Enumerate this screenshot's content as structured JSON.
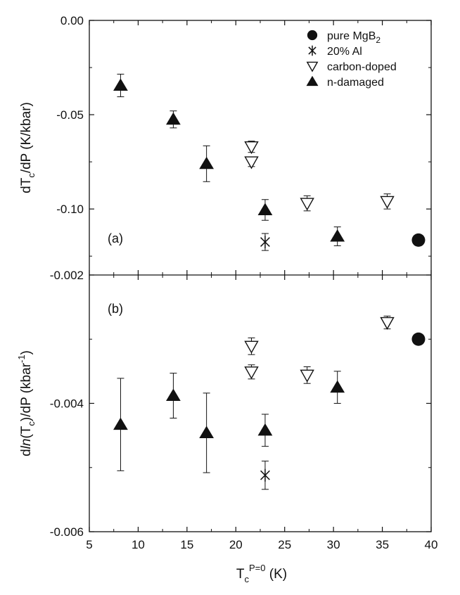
{
  "chart_data": [
    {
      "panel": "(a)",
      "type": "scatter",
      "ylabel": "dT_c/dP (K/kbar)",
      "ylabel_parts": {
        "main": "dT",
        "sub": "c",
        "rest": "/dP (K/kbar)"
      },
      "xlim": [
        5,
        40
      ],
      "ylim": [
        -0.135,
        0.0
      ],
      "yticks": [
        0.0,
        -0.05,
        -0.1
      ],
      "yticklabels": [
        "0.00",
        "-0.05",
        "-0.10"
      ],
      "legend": {
        "placement": "top-right",
        "entries": [
          {
            "key": "pure",
            "label": "pure MgB",
            "sub": "2",
            "marker": "filled-circle"
          },
          {
            "key": "al",
            "label": "20% Al",
            "sub": "",
            "marker": "asterisk"
          },
          {
            "key": "carbon",
            "label": "carbon-doped",
            "sub": "",
            "marker": "open-triangle-down"
          },
          {
            "key": "n",
            "label": "n-damaged",
            "sub": "",
            "marker": "filled-triangle-up"
          }
        ]
      },
      "series": [
        {
          "key": "pure",
          "points": [
            {
              "x": 38.7,
              "y": -0.1165
            }
          ]
        },
        {
          "key": "al",
          "points": [
            {
              "x": 23.0,
              "y": -0.1175,
              "err": 0.0045
            }
          ]
        },
        {
          "key": "carbon",
          "points": [
            {
              "x": 21.6,
              "y": -0.067,
              "err": 0.003
            },
            {
              "x": 21.6,
              "y": -0.075,
              "err": 0.0025
            },
            {
              "x": 27.3,
              "y": -0.097,
              "err": 0.004
            },
            {
              "x": 35.5,
              "y": -0.096,
              "err": 0.004
            }
          ]
        },
        {
          "key": "n",
          "points": [
            {
              "x": 8.2,
              "y": -0.0345,
              "err": 0.006
            },
            {
              "x": 13.6,
              "y": -0.0525,
              "err": 0.0045
            },
            {
              "x": 17.0,
              "y": -0.076,
              "err": 0.0095
            },
            {
              "x": 23.0,
              "y": -0.1005,
              "err": 0.0055
            },
            {
              "x": 30.4,
              "y": -0.1145,
              "err": 0.005
            }
          ]
        }
      ]
    },
    {
      "panel": "(b)",
      "type": "scatter",
      "xlabel": "T_c^{P=0} (K)",
      "xlabel_parts": {
        "main": "T",
        "sub": "c",
        "sup": "P=0",
        "rest": " (K)"
      },
      "ylabel": "dln(T_c)/dP (kbar^-1)",
      "ylabel_parts": {
        "d": "d",
        "ln": "ln",
        "open": "(T",
        "sub": "c",
        "close": ")/dP (kbar",
        "sup": "-1",
        "end": ")"
      },
      "xlim": [
        5,
        40
      ],
      "ylim": [
        -0.006,
        -0.002
      ],
      "xticks": [
        5,
        10,
        15,
        20,
        25,
        30,
        35,
        40
      ],
      "xticklabels": [
        "5",
        "10",
        "15",
        "20",
        "25",
        "30",
        "35",
        "40"
      ],
      "yticks": [
        -0.002,
        -0.004,
        -0.006
      ],
      "yticklabels": [
        "-0.002",
        "-0.004",
        "-0.006"
      ],
      "series": [
        {
          "key": "pure",
          "points": [
            {
              "x": 38.7,
              "y": -0.003
            }
          ]
        },
        {
          "key": "al",
          "points": [
            {
              "x": 23.0,
              "y": -0.00512,
              "err": 0.00022
            }
          ]
        },
        {
          "key": "carbon",
          "points": [
            {
              "x": 21.6,
              "y": -0.00311,
              "err": 0.00013
            },
            {
              "x": 21.6,
              "y": -0.00351,
              "err": 0.00011
            },
            {
              "x": 27.3,
              "y": -0.00356,
              "err": 0.00013
            },
            {
              "x": 35.5,
              "y": -0.00274,
              "err": 0.0001
            }
          ]
        },
        {
          "key": "n",
          "points": [
            {
              "x": 8.2,
              "y": -0.00433,
              "err": 0.00072
            },
            {
              "x": 13.6,
              "y": -0.00388,
              "err": 0.00035
            },
            {
              "x": 17.0,
              "y": -0.00446,
              "err": 0.00062
            },
            {
              "x": 23.0,
              "y": -0.00442,
              "err": 0.00025
            },
            {
              "x": 30.4,
              "y": -0.00375,
              "err": 0.00025
            }
          ]
        }
      ]
    }
  ]
}
